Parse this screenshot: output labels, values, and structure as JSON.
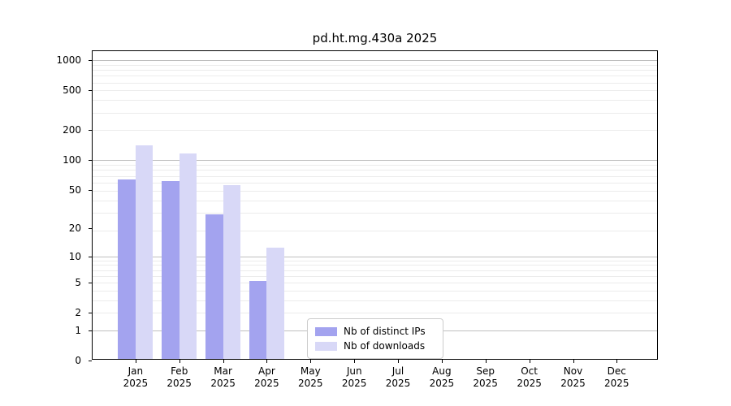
{
  "title": "pd.ht.mg.430a 2025",
  "chart_data": {
    "type": "bar",
    "title": "pd.ht.mg.430a 2025",
    "categories": [
      "Jan",
      "Feb",
      "Mar",
      "Apr",
      "May",
      "Jun",
      "Jul",
      "Aug",
      "Sep",
      "Oct",
      "Nov",
      "Dec"
    ],
    "category_year": "2025",
    "series": [
      {
        "name": "Nb of distinct IPs",
        "color": "#a3a3ef",
        "values": [
          61,
          59,
          27,
          5,
          0,
          0,
          0,
          0,
          0,
          0,
          0,
          0
        ]
      },
      {
        "name": "Nb of downloads",
        "color": "#d8d8f7",
        "values": [
          135,
          112,
          53,
          12,
          0,
          0,
          0,
          0,
          0,
          0,
          0,
          0
        ]
      }
    ],
    "y_scale": "log10(1+v)",
    "y_ticks": [
      0,
      1,
      2,
      5,
      10,
      20,
      50,
      100,
      200,
      500,
      1000
    ],
    "y_major_gridlines": [
      1,
      10,
      100,
      1000
    ],
    "ylim": [
      0,
      1231
    ],
    "xlabel": "",
    "ylabel": "",
    "grid": true,
    "legend_position": "lower center"
  }
}
